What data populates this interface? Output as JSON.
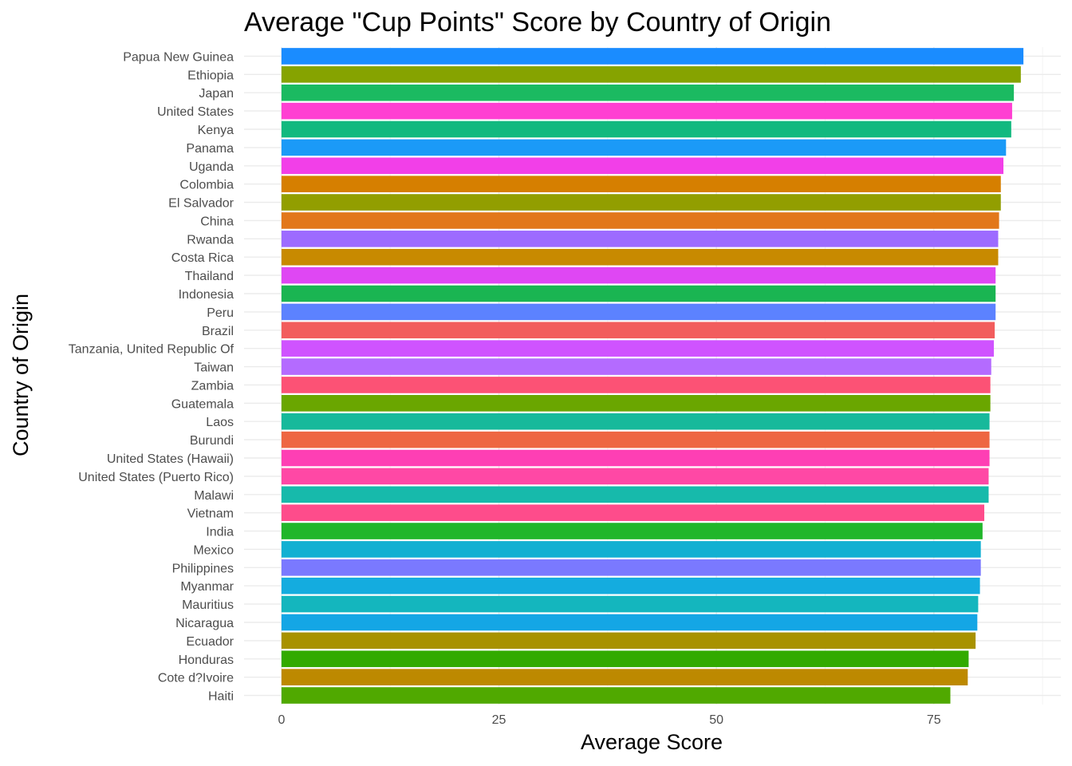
{
  "chart_data": {
    "type": "bar",
    "orientation": "horizontal",
    "title": "Average \"Cup Points\" Score by Country of Origin",
    "xlabel": "Average Score",
    "ylabel": "Country of Origin",
    "xlim": [
      -4.3,
      89.6
    ],
    "x_ticks": [
      0,
      25,
      50,
      75
    ],
    "x_tick_labels": [
      "0",
      "25",
      "50",
      "75"
    ],
    "grid": true,
    "legend": "none",
    "categories": [
      "Papua New Guinea",
      "Ethiopia",
      "Japan",
      "United States",
      "Kenya",
      "Panama",
      "Uganda",
      "Colombia",
      "El Salvador",
      "China",
      "Rwanda",
      "Costa Rica",
      "Thailand",
      "Indonesia",
      "Peru",
      "Brazil",
      "Tanzania, United Republic Of",
      "Taiwan",
      "Zambia",
      "Guatemala",
      "Laos",
      "Burundi",
      "United States (Hawaii)",
      "United States (Puerto Rico)",
      "Malawi",
      "Vietnam",
      "India",
      "Mexico",
      "Philippines",
      "Myanmar",
      "Mauritius",
      "Nicaragua",
      "Ecuador",
      "Honduras",
      "Cote d?Ivoire",
      "Haiti"
    ],
    "values": [
      85.3,
      85.0,
      84.2,
      84.0,
      83.9,
      83.3,
      83.0,
      82.7,
      82.7,
      82.5,
      82.4,
      82.4,
      82.1,
      82.1,
      82.1,
      82.0,
      81.9,
      81.6,
      81.5,
      81.5,
      81.4,
      81.4,
      81.4,
      81.3,
      81.3,
      80.8,
      80.6,
      80.4,
      80.4,
      80.3,
      80.1,
      80.0,
      79.8,
      79.0,
      78.9,
      76.9
    ],
    "colors": [
      "#1a8cff",
      "#86a300",
      "#1bba61",
      "#ff3fd2",
      "#12b97f",
      "#1b9af7",
      "#f23fe8",
      "#d67f00",
      "#929e00",
      "#e2771a",
      "#9d6bff",
      "#c88a00",
      "#df47f3",
      "#1ab552",
      "#5c82ff",
      "#f25d5d",
      "#cf53ff",
      "#b46bff",
      "#fc5275",
      "#6aa600",
      "#17b99b",
      "#ee6642",
      "#fe3fb4",
      "#ff48a5",
      "#17baab",
      "#fe4c8b",
      "#20b62a",
      "#12b0d2",
      "#7a79ff",
      "#14acdf",
      "#14b6be",
      "#14a6e5",
      "#a89200",
      "#32aa00",
      "#bd8900",
      "#50a900"
    ]
  }
}
